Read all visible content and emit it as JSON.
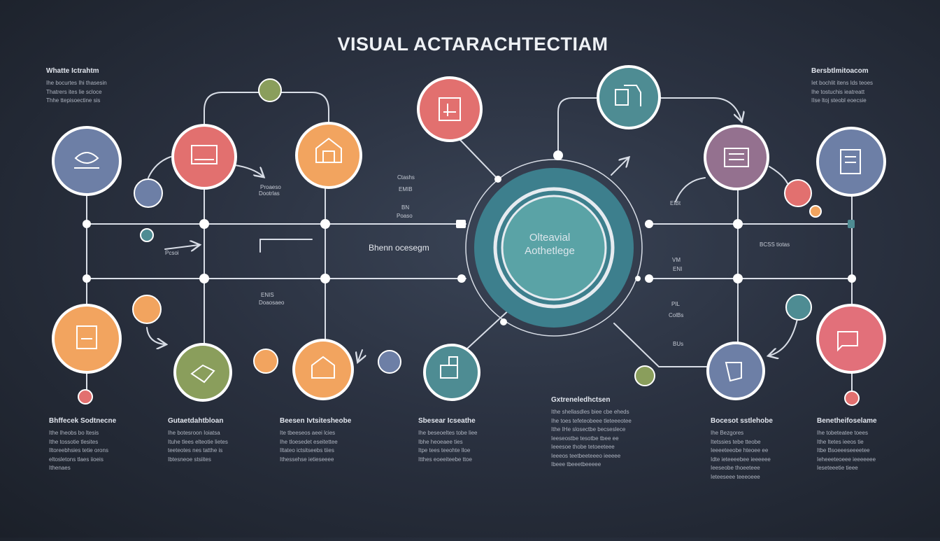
{
  "title": "VISUAL ACTARACHTECTIAM",
  "center": {
    "line1": "Olteavial",
    "line2": "Aothetlege"
  },
  "labels": {
    "brain": "Bhenn ocesegm",
    "l1a": "Proaeso",
    "l1b": "Dootrlas",
    "l2a": "Ctashs",
    "l2b": "EMIB",
    "l3a": "BN",
    "l3b": "Poaso",
    "l4": "Pcsoi",
    "l5a": "ENIS",
    "l5b": "Doaosaeo",
    "r1": "BCSS tiotas",
    "r2": "VM",
    "r3": "ENI",
    "r4": "PIL",
    "r5": "BUs",
    "r6": "EIBt",
    "r7": "ColBs"
  },
  "corner_blocks": [
    {
      "title": "Whatte Ictrahtm",
      "lines": [
        "Ihe bocurtes Ihi thasesin",
        "Thatrers ites lie scloce",
        "Thhe ttepisoectine sis"
      ]
    },
    {
      "title": "Bersbtlmitoacom",
      "lines": [
        "Iet bochlit itens Ids teoes",
        "Ihe tostuchis ieatreatt",
        "IIse ltoj steobl eoecsie"
      ]
    }
  ],
  "bottom_blocks": [
    {
      "title": "Bhffecek Sodtnecne",
      "lines": [
        "Ithe Iheobs bo ltesis",
        "Ithe tossotie tlesites",
        "Iltoreebhsies tetie orons",
        "eltosletons tlaes iioeis",
        "Ithenaes"
      ]
    },
    {
      "title": "Gutaetdahtbloan",
      "lines": [
        "Ihe botesroon Ioiatsa",
        "Ituhe tlees elteotie lietes",
        "teeteotes nes tatthe is",
        "Ibtesneoe stsiites"
      ]
    },
    {
      "title": "Beesen Ivtsitesheobe",
      "lines": [
        "Ite tbeeseos aeei lcies",
        "Ihe tloesedet eseitettee",
        "Iltateo ictsitseebs tiies",
        "Ithessehse ietieseeee"
      ]
    },
    {
      "title": "Sbesear Icseathe",
      "lines": [
        "Ihe beseoeltes tobe liee",
        "Ibhe heoeaee ties",
        "Itpe tees teeohte lloe",
        "Itthes eoeeiteebe ttoe"
      ]
    },
    {
      "title": "Gxtreneledhctsen",
      "lines": [
        "Ithe shellasdles biee cbe eheds",
        "Ihe toes tefeteobeee tleteeeotee",
        "Ithe IHe slosectbe becseslece",
        "Ieeseostbe tesotbe tbee ee",
        "Ieeesoe thobe tetoeeteee",
        "Ieeeos teetbeeteeeo ieeeee",
        "Ibeee tbeeetbeeeee"
      ]
    },
    {
      "title": "Bocesot sstlehobe",
      "lines": [
        "Ihe Bezgores",
        "Itetssies tebe tteobe",
        "Ieeeeteeobe hteoee ee",
        "Idte ieteeeebee ieeeeee",
        "Ieeseobe thoeeteee",
        "Ieteeseee teeeoeee"
      ]
    },
    {
      "title": "Benetheifoselame",
      "lines": [
        "Ihe tobeteatee toees",
        "Ithe ltetes ieeos tie",
        "Itbe Bsoeeeseeeetee",
        "Ieheeeteoeee ieeeeeee",
        "Ieseteeetie tieee"
      ]
    }
  ],
  "colors": {
    "blue": "#6d7fa6",
    "red": "#e2706f",
    "orange": "#f2a45f",
    "green": "#8a9e5c",
    "teal": "#4e8c93",
    "purple": "#94718f",
    "pink": "#e2707a",
    "line": "#d8dde6"
  },
  "icons": [
    "shield",
    "chart",
    "house",
    "monitor",
    "box",
    "gear",
    "list",
    "tablet",
    "chat",
    "building"
  ]
}
